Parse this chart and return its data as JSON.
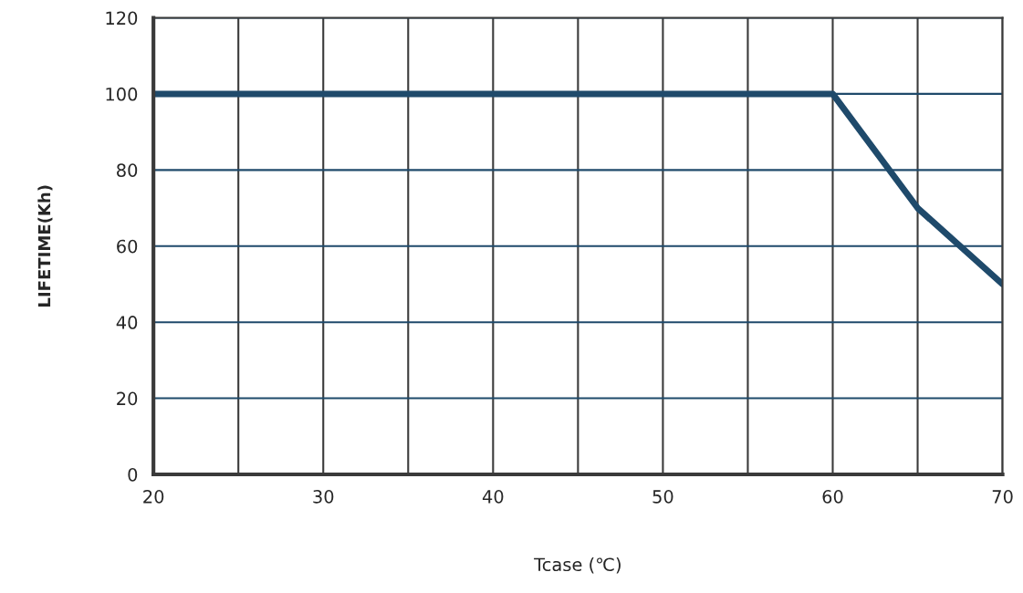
{
  "chart_data": {
    "type": "line",
    "xlabel": "Tcase (℃)",
    "ylabel": "LIFETIME(Kh)",
    "x": [
      20,
      60,
      65,
      70
    ],
    "series": [
      {
        "color": "#1f4a6b",
        "values": [
          100,
          100,
          70,
          50
        ]
      }
    ],
    "xlim": [
      20,
      70
    ],
    "ylim": [
      0,
      120
    ],
    "xticks": [
      20,
      {
        "value": 25,
        "label": null
      },
      30,
      {
        "value": 35,
        "label": null
      },
      40,
      {
        "value": 45,
        "label": null
      },
      50,
      {
        "value": 55,
        "label": null
      },
      60,
      {
        "value": 65,
        "label": null
      },
      70
    ],
    "yticks": [
      0,
      20,
      40,
      60,
      80,
      100,
      120
    ],
    "grid": true,
    "marker": "none",
    "line_style": "solid"
  }
}
